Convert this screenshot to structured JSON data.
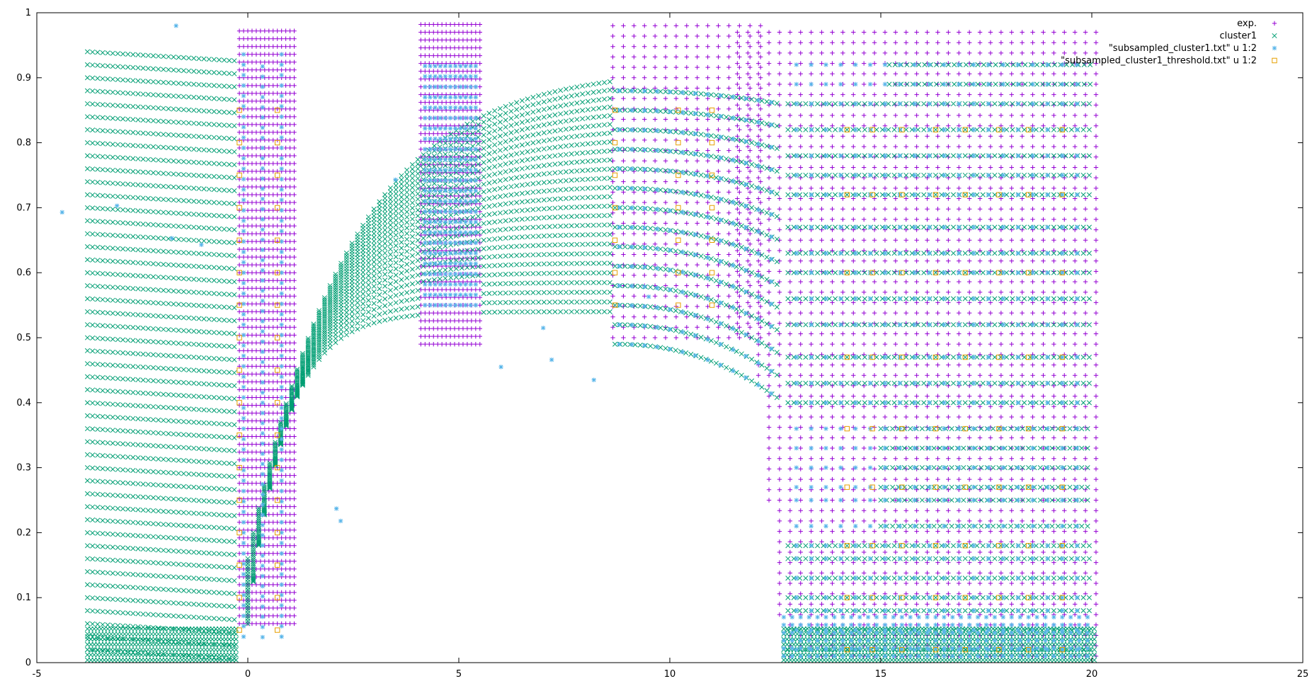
{
  "chart_data": {
    "type": "scatter",
    "title": "",
    "xlabel": "",
    "ylabel": "",
    "xlim": [
      -5,
      25
    ],
    "ylim": [
      0,
      1
    ],
    "x_ticks": [
      "-5",
      "0",
      "5",
      "10",
      "15",
      "20",
      "25"
    ],
    "x_tick_values": [
      -5,
      0,
      5,
      10,
      15,
      20,
      25
    ],
    "y_ticks": [
      "0",
      "0.1",
      "0.2",
      "0.3",
      "0.4",
      "0.5",
      "0.6",
      "0.7",
      "0.8",
      "0.9",
      "1"
    ],
    "y_tick_values": [
      0,
      0.1,
      0.2,
      0.3,
      0.4,
      0.5,
      0.6,
      0.7,
      0.8,
      0.9,
      1
    ],
    "grid": false,
    "legend_position": "top-right",
    "series": [
      {
        "name": "exp.",
        "marker": "plus",
        "color": "#9400d3",
        "blocks": [
          {
            "x_range": [
              -0.2,
              1.1
            ],
            "x_step": 0.1,
            "y_range": [
              0.06,
              0.98
            ],
            "y_step": 0.012
          },
          {
            "x_range": [
              4.1,
              5.5
            ],
            "x_step": 0.1,
            "y_range": [
              0.49,
              0.99
            ],
            "y_step": 0.012
          },
          {
            "x_range": [
              8.65,
              12.2
            ],
            "x_step": 0.25,
            "y_range": [
              0.5,
              0.98
            ],
            "y_step": 0.016
          },
          {
            "x_range": [
              11.6,
              20.1
            ],
            "x_step": 0.25,
            "y_range": [
              0.01,
              0.98
            ],
            "y_step": 0.016
          }
        ]
      },
      {
        "name": "cluster1",
        "marker": "cross",
        "color": "#009e73",
        "fan_left_x": [
          -3.8,
          -0.3
        ],
        "fan_right_x": [
          0.0,
          8.5
        ],
        "right_plateau_x": [
          12.8,
          20.0
        ],
        "line_y_start": 0.02,
        "line_y_step": 0.02,
        "line_y_end": 0.94
      },
      {
        "name": "\"subsampled_cluster1.txt\" u 1:2",
        "marker": "star",
        "color": "#56b4e9",
        "outliers": [
          [
            -4.4,
            0.693
          ],
          [
            -3.1,
            0.703
          ],
          [
            -1.7,
            0.98
          ],
          [
            -1.8,
            0.653
          ],
          [
            -1.1,
            0.643
          ],
          [
            2.1,
            0.237
          ],
          [
            2.2,
            0.218
          ],
          [
            3.5,
            0.743
          ],
          [
            6.0,
            0.455
          ],
          [
            7.0,
            0.515
          ],
          [
            7.2,
            0.466
          ],
          [
            8.2,
            0.435
          ],
          [
            9.5,
            0.563
          ]
        ],
        "levels_right": [
          0.02,
          0.05,
          0.08,
          0.1,
          0.13,
          0.16,
          0.18,
          0.21,
          0.25,
          0.27,
          0.3,
          0.33,
          0.36,
          0.4,
          0.43,
          0.47,
          0.52,
          0.56,
          0.6,
          0.63,
          0.67,
          0.72,
          0.75,
          0.78,
          0.82,
          0.86,
          0.89,
          0.92
        ]
      },
      {
        "name": "\"subsampled_cluster1_threshold.txt\" u 1:2",
        "marker": "square",
        "color": "#e69f00",
        "x_values": [
          14.2,
          14.8,
          15.5,
          16.3,
          17.0,
          17.8,
          18.5,
          19.3
        ]
      }
    ]
  }
}
